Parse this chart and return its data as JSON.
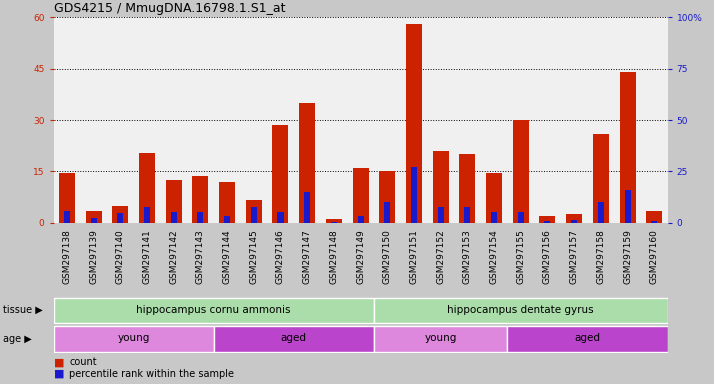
{
  "title": "GDS4215 / MmugDNA.16798.1.S1_at",
  "samples": [
    "GSM297138",
    "GSM297139",
    "GSM297140",
    "GSM297141",
    "GSM297142",
    "GSM297143",
    "GSM297144",
    "GSM297145",
    "GSM297146",
    "GSM297147",
    "GSM297148",
    "GSM297149",
    "GSM297150",
    "GSM297151",
    "GSM297152",
    "GSM297153",
    "GSM297154",
    "GSM297155",
    "GSM297156",
    "GSM297157",
    "GSM297158",
    "GSM297159",
    "GSM297160"
  ],
  "count_values": [
    14.5,
    3.5,
    5.0,
    20.5,
    12.5,
    13.5,
    12.0,
    6.5,
    28.5,
    35.0,
    1.0,
    16.0,
    15.0,
    58.0,
    21.0,
    20.0,
    14.5,
    30.0,
    2.0,
    2.5,
    26.0,
    44.0,
    3.5
  ],
  "percentile_values": [
    5.5,
    2.5,
    4.5,
    7.5,
    5.0,
    5.0,
    3.5,
    7.5,
    5.0,
    15.0,
    0.5,
    3.5,
    10.0,
    27.0,
    7.5,
    7.5,
    5.0,
    5.0,
    1.0,
    1.5,
    10.0,
    16.0,
    1.0
  ],
  "ylim_left": [
    0,
    60
  ],
  "ylim_right": [
    0,
    100
  ],
  "yticks_left": [
    0,
    15,
    30,
    45,
    60
  ],
  "yticks_right": [
    0,
    25,
    50,
    75,
    100
  ],
  "bar_color_red": "#cc2200",
  "bar_color_blue": "#1a1acc",
  "tissue_groups": [
    {
      "label": "hippocampus cornu ammonis",
      "start": 0,
      "end": 11,
      "color": "#aaddaa"
    },
    {
      "label": "hippocampus dentate gyrus",
      "start": 12,
      "end": 22,
      "color": "#aaddaa"
    }
  ],
  "age_groups": [
    {
      "label": "young",
      "start": 0,
      "end": 5,
      "color": "#dd88dd"
    },
    {
      "label": "aged",
      "start": 6,
      "end": 11,
      "color": "#bb44cc"
    },
    {
      "label": "young",
      "start": 12,
      "end": 16,
      "color": "#dd88dd"
    },
    {
      "label": "aged",
      "start": 17,
      "end": 22,
      "color": "#bb44cc"
    }
  ],
  "bg_color": "#c8c8c8",
  "plot_bg": "#f0f0f0",
  "title_fontsize": 9,
  "tick_fontsize": 6.5,
  "label_fontsize": 7.5
}
